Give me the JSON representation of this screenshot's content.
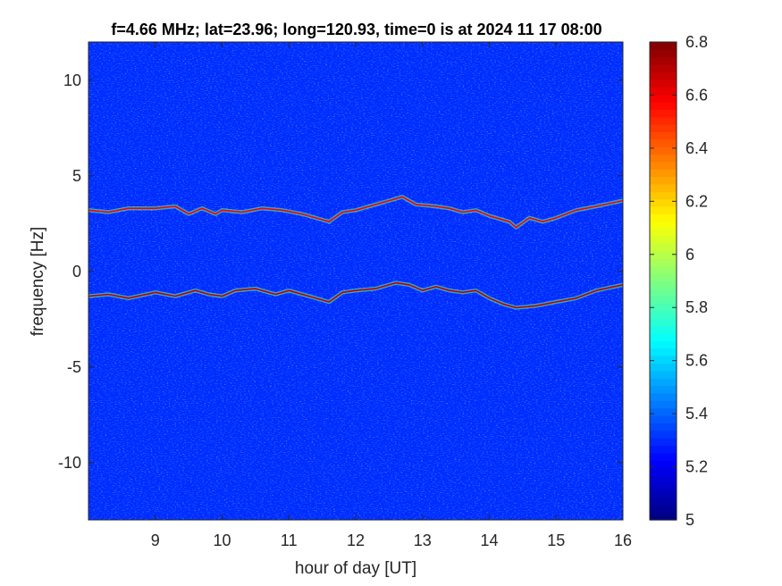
{
  "chart_data": {
    "type": "heatmap",
    "title": "f=4.66 MHz;  lat=23.96; long=120.93, time=0 is at 2024 11 17 08:00",
    "xlabel": "hour of day [UT]",
    "ylabel": "frequency [Hz]",
    "xlim": [
      8,
      16
    ],
    "ylim": [
      -13,
      12
    ],
    "xticks": [
      9,
      10,
      11,
      12,
      13,
      14,
      15,
      16
    ],
    "yticks": [
      -10,
      -5,
      0,
      5,
      10
    ],
    "colorbar": {
      "range": [
        5,
        6.8
      ],
      "ticks": [
        "5",
        "5.2",
        "5.4",
        "5.6",
        "5.8",
        "6",
        "6.2",
        "6.4",
        "6.6",
        "6.8"
      ],
      "colormap": "jet"
    },
    "background_level": 5.3,
    "traces": [
      {
        "level": 6.6,
        "x": [
          8.0,
          8.3,
          8.6,
          9.0,
          9.3,
          9.5,
          9.7,
          9.9,
          10.0,
          10.3,
          10.6,
          10.9,
          11.2,
          11.5,
          11.6,
          11.8,
          12.0,
          12.3,
          12.6,
          12.7,
          12.9,
          13.2,
          13.4,
          13.6,
          13.8,
          14.0,
          14.3,
          14.4,
          14.6,
          14.8,
          15.0,
          15.3,
          15.6,
          16.0
        ],
        "y": [
          3.2,
          3.1,
          3.3,
          3.3,
          3.4,
          3.0,
          3.3,
          3.0,
          3.2,
          3.1,
          3.3,
          3.2,
          3.0,
          2.7,
          2.6,
          3.1,
          3.2,
          3.5,
          3.8,
          3.9,
          3.5,
          3.4,
          3.3,
          3.1,
          3.2,
          2.9,
          2.6,
          2.3,
          2.8,
          2.6,
          2.8,
          3.2,
          3.4,
          3.7
        ]
      },
      {
        "level": 6.7,
        "x": [
          8.0,
          8.3,
          8.6,
          9.0,
          9.3,
          9.6,
          9.8,
          10.0,
          10.2,
          10.5,
          10.8,
          11.0,
          11.3,
          11.6,
          11.8,
          12.0,
          12.3,
          12.6,
          12.8,
          13.0,
          13.2,
          13.4,
          13.6,
          13.8,
          14.0,
          14.2,
          14.4,
          14.7,
          15.0,
          15.3,
          15.6,
          16.0
        ],
        "y": [
          -1.3,
          -1.2,
          -1.4,
          -1.1,
          -1.3,
          -1.0,
          -1.2,
          -1.3,
          -1.0,
          -0.9,
          -1.2,
          -1.0,
          -1.3,
          -1.6,
          -1.1,
          -1.0,
          -0.9,
          -0.6,
          -0.7,
          -1.0,
          -0.8,
          -1.0,
          -1.1,
          -1.0,
          -1.4,
          -1.7,
          -1.9,
          -1.8,
          -1.6,
          -1.4,
          -1.0,
          -0.7
        ]
      }
    ]
  }
}
